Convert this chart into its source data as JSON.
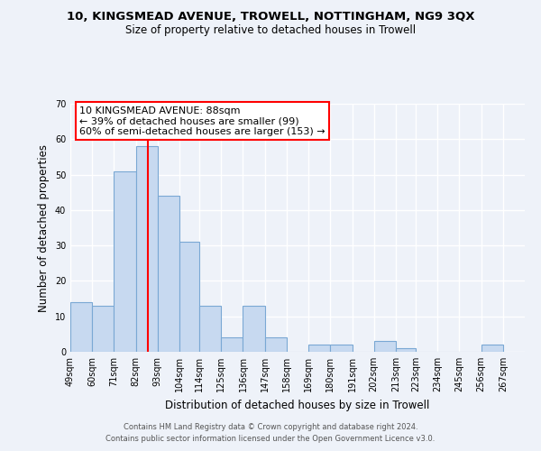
{
  "title": "10, KINGSMEAD AVENUE, TROWELL, NOTTINGHAM, NG9 3QX",
  "subtitle": "Size of property relative to detached houses in Trowell",
  "xlabel": "Distribution of detached houses by size in Trowell",
  "ylabel": "Number of detached properties",
  "bins": [
    "49sqm",
    "60sqm",
    "71sqm",
    "82sqm",
    "93sqm",
    "104sqm",
    "114sqm",
    "125sqm",
    "136sqm",
    "147sqm",
    "158sqm",
    "169sqm",
    "180sqm",
    "191sqm",
    "202sqm",
    "213sqm",
    "223sqm",
    "234sqm",
    "245sqm",
    "256sqm",
    "267sqm"
  ],
  "values": [
    14,
    13,
    51,
    58,
    44,
    31,
    13,
    4,
    13,
    4,
    0,
    2,
    2,
    0,
    3,
    1,
    0,
    0,
    0,
    2
  ],
  "bar_color": "#c7d9f0",
  "bar_edge_color": "#7aa8d4",
  "ylim": [
    0,
    70
  ],
  "yticks": [
    0,
    10,
    20,
    30,
    40,
    50,
    60,
    70
  ],
  "red_line_x": 88,
  "bin_edges": [
    49,
    60,
    71,
    82,
    93,
    104,
    114,
    125,
    136,
    147,
    158,
    169,
    180,
    191,
    202,
    213,
    223,
    234,
    245,
    256,
    267
  ],
  "annotation_title": "10 KINGSMEAD AVENUE: 88sqm",
  "annotation_line1": "← 39% of detached houses are smaller (99)",
  "annotation_line2": "60% of semi-detached houses are larger (153) →",
  "footer1": "Contains HM Land Registry data © Crown copyright and database right 2024.",
  "footer2": "Contains public sector information licensed under the Open Government Licence v3.0.",
  "bg_color": "#eef2f9"
}
